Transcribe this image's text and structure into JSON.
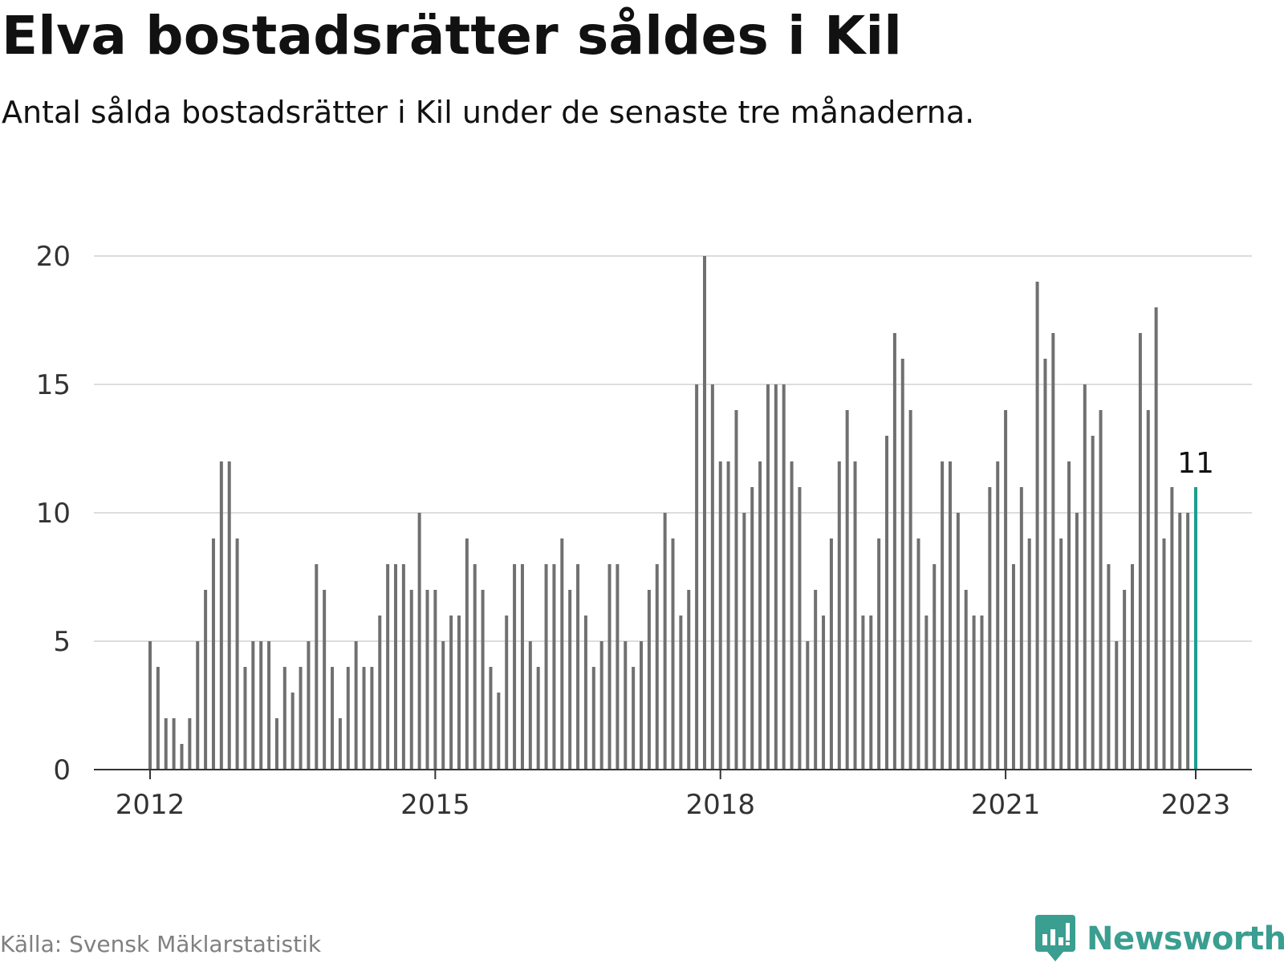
{
  "title": "Elva bostadsrätter såldes i Kil",
  "subtitle": "Antal sålda bostadsrätter i Kil under de senaste tre månaderna.",
  "source": "Källa: Svensk Mäklarstatistik",
  "brand": {
    "name": "Newsworthy",
    "color": "#3a9e90",
    "icon": "newsworthy-logo-icon"
  },
  "colors": {
    "bar": "#707070",
    "highlight": "#1a9e90",
    "grid": "#dddddd",
    "axis": "#333333"
  },
  "chart_data": {
    "type": "bar",
    "x_start": "2012-01",
    "x_interval": "month",
    "ylim": [
      0,
      20
    ],
    "yticks": [
      "0",
      "5",
      "10",
      "15",
      "20"
    ],
    "xticks": [
      "2012",
      "2015",
      "2018",
      "2021",
      "2023"
    ],
    "grid": true,
    "highlight_label": "11",
    "values": [
      5,
      4,
      2,
      2,
      1,
      2,
      5,
      7,
      9,
      12,
      12,
      9,
      4,
      5,
      5,
      5,
      2,
      4,
      3,
      4,
      5,
      8,
      7,
      4,
      2,
      4,
      5,
      4,
      4,
      6,
      8,
      8,
      8,
      7,
      10,
      7,
      7,
      5,
      6,
      6,
      9,
      8,
      7,
      4,
      3,
      6,
      8,
      8,
      5,
      4,
      8,
      8,
      9,
      7,
      8,
      6,
      4,
      5,
      8,
      8,
      5,
      4,
      5,
      7,
      8,
      10,
      9,
      6,
      7,
      15,
      20,
      15,
      12,
      12,
      14,
      10,
      11,
      12,
      15,
      15,
      15,
      12,
      11,
      5,
      7,
      6,
      9,
      12,
      14,
      12,
      6,
      6,
      9,
      13,
      17,
      16,
      14,
      9,
      6,
      8,
      12,
      12,
      10,
      7,
      6,
      6,
      11,
      12,
      14,
      8,
      11,
      9,
      19,
      16,
      17,
      9,
      12,
      10,
      15,
      13,
      14,
      8,
      5,
      7,
      8,
      17,
      14,
      18,
      9,
      11,
      10,
      10,
      11
    ]
  }
}
